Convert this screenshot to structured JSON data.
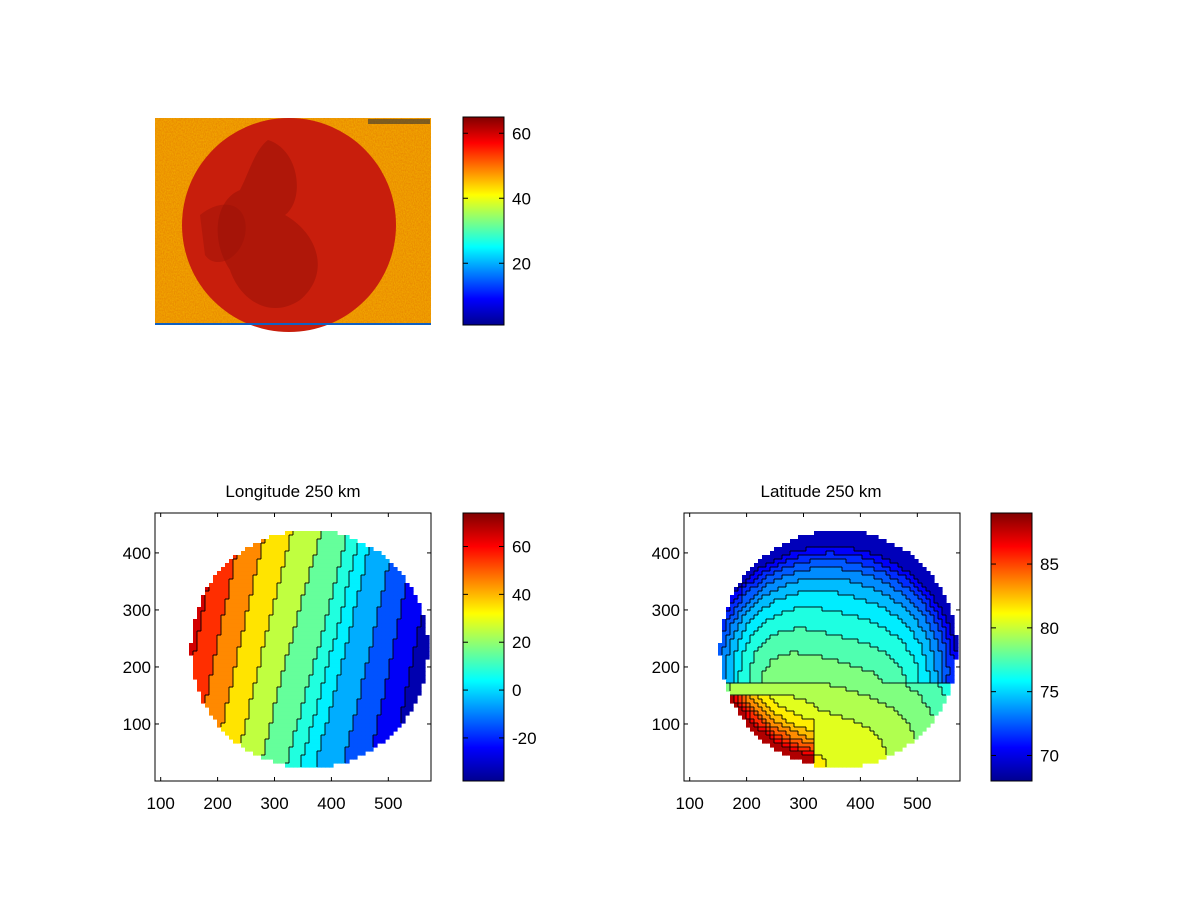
{
  "figure": {
    "panels": [
      "image",
      "longitude",
      "latitude"
    ]
  },
  "colors": {
    "jet": [
      "#00008f",
      "#0000ff",
      "#0080ff",
      "#00ffff",
      "#80ff80",
      "#ffff00",
      "#ff8000",
      "#ff0000",
      "#800000"
    ],
    "contour_line": "#000000",
    "axis": "#000000"
  },
  "chart_data": [
    {
      "type": "heatmap",
      "name": "raw-image",
      "title": "",
      "xlabel": "",
      "ylabel": "",
      "colorbar": {
        "clim": [
          1,
          65
        ],
        "ticks": [
          "20",
          "40",
          "60"
        ],
        "tick_values": [
          20,
          40,
          60
        ]
      },
      "axes_visible": false
    },
    {
      "type": "heatmap",
      "name": "longitude",
      "title": "Longitude 250 km",
      "xlabel": "",
      "ylabel": "",
      "xlim": [
        90,
        575
      ],
      "ylim": [
        0,
        470
      ],
      "xticks": [
        "100",
        "200",
        "300",
        "400",
        "500"
      ],
      "xtick_values": [
        100,
        200,
        300,
        400,
        500
      ],
      "yticks": [
        "100",
        "200",
        "300",
        "400"
      ],
      "ytick_values": [
        100,
        200,
        300,
        400
      ],
      "colorbar": {
        "clim": [
          -38,
          74
        ],
        "ticks": [
          "-20",
          "0",
          "20",
          "40",
          "60"
        ],
        "tick_values": [
          -20,
          0,
          20,
          40,
          60
        ]
      },
      "disk": {
        "cx": 361,
        "cy": 232,
        "r": 208
      },
      "field": {
        "gx": 0.19,
        "gy": 0.0535,
        "at_center": 13,
        "clip": [
          -38,
          74
        ]
      },
      "contour_levels": [
        -30,
        -20,
        -10,
        0,
        5,
        10,
        20,
        30,
        40,
        50,
        60,
        70
      ]
    },
    {
      "type": "heatmap",
      "name": "latitude",
      "title": "Latitude 250 km",
      "xlabel": "",
      "ylabel": "",
      "xlim": [
        90,
        575
      ],
      "ylim": [
        0,
        470
      ],
      "xticks": [
        "100",
        "200",
        "300",
        "400",
        "500"
      ],
      "xtick_values": [
        100,
        200,
        300,
        400,
        500
      ],
      "yticks": [
        "100",
        "200",
        "300",
        "400"
      ],
      "ytick_values": [
        100,
        200,
        300,
        400
      ],
      "colorbar": {
        "clim": [
          68,
          89
        ],
        "ticks": [
          "70",
          "75",
          "80",
          "85"
        ],
        "tick_values": [
          70,
          75,
          80,
          85
        ]
      },
      "disk": {
        "cx": 361,
        "cy": 232,
        "r": 208
      },
      "field": {
        "ax": -0.006,
        "ay": -0.0225,
        "at_center": 77.5,
        "edge_dark": 6.5,
        "clip": [
          68,
          89
        ]
      },
      "contour_levels": [
        70,
        71,
        72,
        73,
        74,
        75,
        76,
        77,
        78,
        79,
        80,
        81,
        82,
        83,
        84,
        85,
        86,
        87
      ]
    }
  ]
}
